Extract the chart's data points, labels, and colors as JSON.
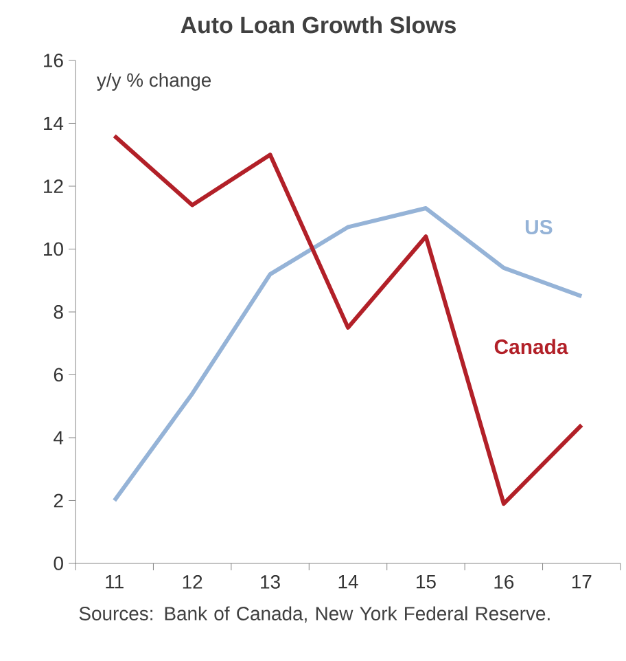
{
  "chart_data": {
    "type": "line",
    "title": "Auto Loan Growth Slows",
    "ylabel": "y/y % change",
    "categories": [
      "11",
      "12",
      "13",
      "14",
      "15",
      "16",
      "17"
    ],
    "series": [
      {
        "name": "US",
        "color": "#95b3d7",
        "values": [
          2.0,
          5.4,
          9.2,
          10.7,
          11.3,
          9.4,
          8.5
        ]
      },
      {
        "name": "Canada",
        "color": "#b22028",
        "values": [
          13.6,
          11.4,
          13.0,
          7.5,
          10.4,
          1.9,
          4.4
        ]
      }
    ],
    "ylim": [
      0,
      16
    ],
    "yticks": [
      0,
      2,
      4,
      6,
      8,
      10,
      12,
      14,
      16
    ],
    "grid": false,
    "legend": false,
    "marker": "none",
    "line_style": "solid",
    "annotations": [
      "Sources: Bank of Canada, New York Federal Reserve."
    ]
  }
}
